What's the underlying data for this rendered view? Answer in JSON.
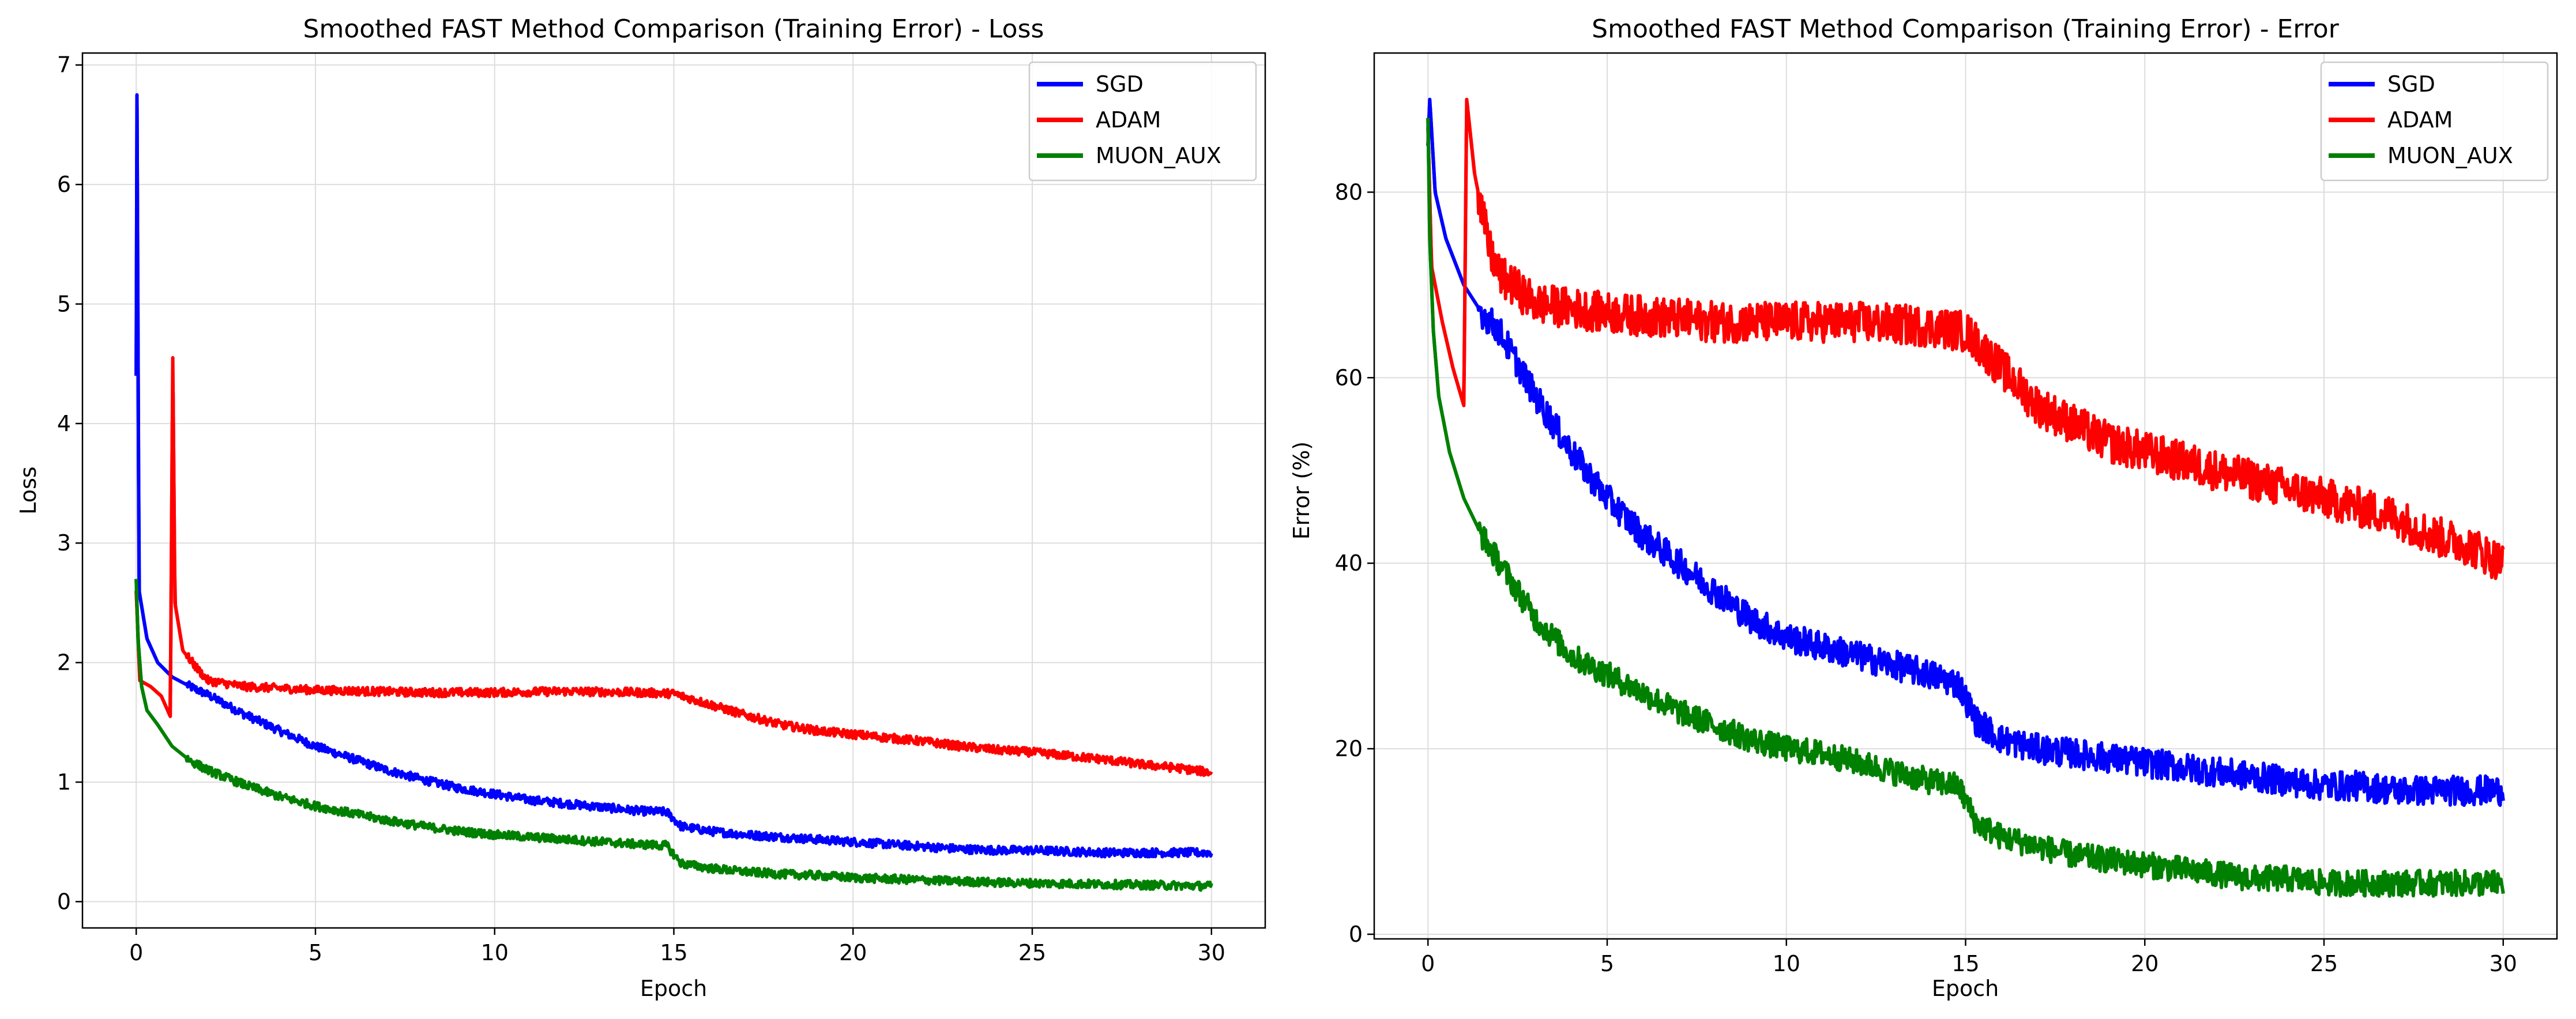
{
  "chart_data": [
    {
      "type": "line",
      "title": "Smoothed FAST Method Comparison (Training Error) - Loss",
      "xlabel": "Epoch",
      "ylabel": "Loss",
      "xlim": [
        -1.5,
        31.5
      ],
      "ylim": [
        -0.22,
        7.1
      ],
      "xticks": [
        "0",
        "5",
        "10",
        "15",
        "20",
        "25",
        "30"
      ],
      "yticks": [
        "0",
        "1",
        "2",
        "3",
        "4",
        "5",
        "6",
        "7"
      ],
      "grid": true,
      "legend_position": "top-right",
      "series": [
        {
          "name": "SGD",
          "color": "#0000ff",
          "points": [
            [
              0,
              4.4
            ],
            [
              0.02,
              6.75
            ],
            [
              0.08,
              2.6
            ],
            [
              0.3,
              2.2
            ],
            [
              0.6,
              2.0
            ],
            [
              1,
              1.88
            ],
            [
              1.5,
              1.8
            ],
            [
              2,
              1.73
            ],
            [
              3,
              1.57
            ],
            [
              4,
              1.43
            ],
            [
              5,
              1.3
            ],
            [
              6,
              1.2
            ],
            [
              7,
              1.1
            ],
            [
              8,
              1.02
            ],
            [
              9,
              0.95
            ],
            [
              10,
              0.9
            ],
            [
              11,
              0.85
            ],
            [
              12,
              0.82
            ],
            [
              13,
              0.79
            ],
            [
              14,
              0.76
            ],
            [
              14.8,
              0.75
            ],
            [
              15.2,
              0.63
            ],
            [
              16,
              0.59
            ],
            [
              17,
              0.56
            ],
            [
              18,
              0.54
            ],
            [
              19,
              0.52
            ],
            [
              20,
              0.5
            ],
            [
              21,
              0.48
            ],
            [
              22,
              0.46
            ],
            [
              23,
              0.44
            ],
            [
              24,
              0.43
            ],
            [
              25,
              0.43
            ],
            [
              26,
              0.42
            ],
            [
              27,
              0.41
            ],
            [
              28,
              0.41
            ],
            [
              29,
              0.41
            ],
            [
              30,
              0.41
            ]
          ]
        },
        {
          "name": "ADAM",
          "color": "#ff0000",
          "points": [
            [
              0,
              2.6
            ],
            [
              0.1,
              1.85
            ],
            [
              0.4,
              1.8
            ],
            [
              0.7,
              1.72
            ],
            [
              0.95,
              1.55
            ],
            [
              1.02,
              4.55
            ],
            [
              1.08,
              2.5
            ],
            [
              1.3,
              2.1
            ],
            [
              1.7,
              1.95
            ],
            [
              2,
              1.85
            ],
            [
              3,
              1.8
            ],
            [
              5,
              1.77
            ],
            [
              8,
              1.75
            ],
            [
              10,
              1.75
            ],
            [
              12,
              1.76
            ],
            [
              14,
              1.75
            ],
            [
              15,
              1.74
            ],
            [
              16,
              1.65
            ],
            [
              17,
              1.56
            ],
            [
              18,
              1.48
            ],
            [
              19,
              1.43
            ],
            [
              20,
              1.4
            ],
            [
              21,
              1.37
            ],
            [
              22,
              1.34
            ],
            [
              23,
              1.3
            ],
            [
              24,
              1.27
            ],
            [
              25,
              1.25
            ],
            [
              26,
              1.22
            ],
            [
              27,
              1.19
            ],
            [
              28,
              1.15
            ],
            [
              29,
              1.12
            ],
            [
              30,
              1.08
            ]
          ]
        },
        {
          "name": "MUON_AUX",
          "color": "#008000",
          "points": [
            [
              0,
              2.7
            ],
            [
              0.05,
              2.2
            ],
            [
              0.15,
              1.8
            ],
            [
              0.3,
              1.6
            ],
            [
              0.6,
              1.48
            ],
            [
              1,
              1.3
            ],
            [
              1.5,
              1.18
            ],
            [
              2,
              1.1
            ],
            [
              3,
              0.98
            ],
            [
              4,
              0.88
            ],
            [
              5,
              0.8
            ],
            [
              6,
              0.74
            ],
            [
              7,
              0.68
            ],
            [
              8,
              0.63
            ],
            [
              9,
              0.59
            ],
            [
              10,
              0.56
            ],
            [
              11,
              0.54
            ],
            [
              12,
              0.52
            ],
            [
              13,
              0.5
            ],
            [
              14,
              0.48
            ],
            [
              14.8,
              0.47
            ],
            [
              15.2,
              0.32
            ],
            [
              16,
              0.28
            ],
            [
              17,
              0.25
            ],
            [
              18,
              0.23
            ],
            [
              19,
              0.22
            ],
            [
              20,
              0.2
            ],
            [
              22,
              0.18
            ],
            [
              24,
              0.16
            ],
            [
              26,
              0.15
            ],
            [
              28,
              0.14
            ],
            [
              30,
              0.13
            ]
          ]
        }
      ]
    },
    {
      "type": "line",
      "title": "Smoothed FAST Method Comparison (Training Error) - Error",
      "xlabel": "Epoch",
      "ylabel": "Error (%)",
      "xlim": [
        -1.5,
        31.5
      ],
      "ylim": [
        -0.5,
        95
      ],
      "xticks": [
        "0",
        "5",
        "10",
        "15",
        "20",
        "25",
        "30"
      ],
      "yticks": [
        "0",
        "20",
        "40",
        "60",
        "80"
      ],
      "grid": true,
      "legend_position": "top-right",
      "series": [
        {
          "name": "SGD",
          "color": "#0000ff",
          "points": [
            [
              0,
              85
            ],
            [
              0.05,
              90
            ],
            [
              0.2,
              80
            ],
            [
              0.5,
              75
            ],
            [
              1,
              70
            ],
            [
              1.5,
              67
            ],
            [
              2,
              65
            ],
            [
              3,
              58
            ],
            [
              4,
              52
            ],
            [
              5,
              47
            ],
            [
              6,
              43
            ],
            [
              7,
              40
            ],
            [
              8,
              37
            ],
            [
              9,
              34
            ],
            [
              10,
              32
            ],
            [
              11,
              31
            ],
            [
              12,
              30
            ],
            [
              13,
              29
            ],
            [
              14,
              28
            ],
            [
              14.8,
              27
            ],
            [
              15.3,
              23
            ],
            [
              16,
              21
            ],
            [
              17,
              20
            ],
            [
              18,
              19.5
            ],
            [
              19,
              19
            ],
            [
              20,
              18.5
            ],
            [
              21,
              18
            ],
            [
              22,
              17.5
            ],
            [
              23,
              17
            ],
            [
              24,
              16.5
            ],
            [
              25,
              16
            ],
            [
              26,
              16
            ],
            [
              27,
              15.5
            ],
            [
              28,
              15.5
            ],
            [
              29,
              15.5
            ],
            [
              30,
              15.5
            ]
          ]
        },
        {
          "name": "ADAM",
          "color": "#ff0000",
          "points": [
            [
              0,
              87
            ],
            [
              0.1,
              72
            ],
            [
              0.4,
              66
            ],
            [
              0.7,
              61
            ],
            [
              1,
              57
            ],
            [
              1.08,
              90
            ],
            [
              1.3,
              82
            ],
            [
              1.7,
              74
            ],
            [
              2,
              71
            ],
            [
              3,
              68
            ],
            [
              5,
              67
            ],
            [
              8,
              66
            ],
            [
              10,
              66
            ],
            [
              12,
              66
            ],
            [
              14,
              65.5
            ],
            [
              15,
              65
            ],
            [
              16,
              61
            ],
            [
              17,
              57
            ],
            [
              18,
              55
            ],
            [
              19,
              53
            ],
            [
              20,
              52
            ],
            [
              21,
              51
            ],
            [
              22,
              50
            ],
            [
              23,
              49
            ],
            [
              24,
              48
            ],
            [
              25,
              47
            ],
            [
              26,
              46
            ],
            [
              27,
              45
            ],
            [
              28,
              43
            ],
            [
              29,
              42
            ],
            [
              30,
              40
            ]
          ]
        },
        {
          "name": "MUON_AUX",
          "color": "#008000",
          "points": [
            [
              0,
              88
            ],
            [
              0.05,
              75
            ],
            [
              0.15,
              65
            ],
            [
              0.3,
              58
            ],
            [
              0.6,
              52
            ],
            [
              1,
              47
            ],
            [
              1.5,
              43
            ],
            [
              2,
              40
            ],
            [
              3,
              34
            ],
            [
              4,
              30
            ],
            [
              5,
              28
            ],
            [
              6,
              26
            ],
            [
              7,
              24
            ],
            [
              8,
              22.5
            ],
            [
              9,
              21
            ],
            [
              10,
              20
            ],
            [
              11,
              19.5
            ],
            [
              12,
              18.5
            ],
            [
              13,
              17.5
            ],
            [
              14,
              16.5
            ],
            [
              14.8,
              16
            ],
            [
              15.3,
              12
            ],
            [
              16,
              10.5
            ],
            [
              17,
              9.5
            ],
            [
              18,
              8.5
            ],
            [
              19,
              8
            ],
            [
              20,
              7.5
            ],
            [
              21,
              7
            ],
            [
              22,
              6.5
            ],
            [
              23,
              6
            ],
            [
              24,
              6
            ],
            [
              25,
              5.5
            ],
            [
              26,
              5.5
            ],
            [
              27,
              5.5
            ],
            [
              28,
              5.5
            ],
            [
              29,
              5.5
            ],
            [
              30,
              5.5
            ]
          ]
        }
      ]
    }
  ]
}
